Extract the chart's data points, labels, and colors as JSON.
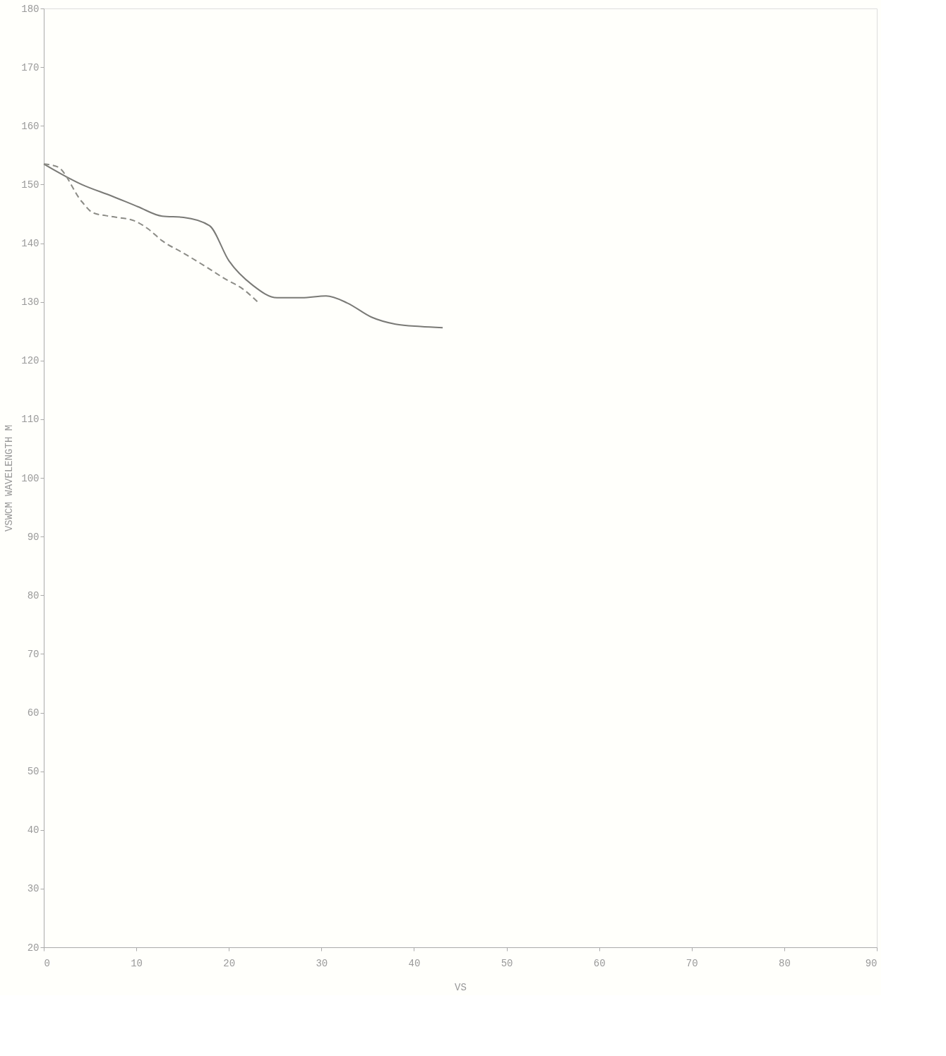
{
  "chart_data": {
    "type": "line",
    "xlabel": "VS",
    "ylabel": "VSWCM WAVELENGTH M",
    "xlim": [
      0,
      90
    ],
    "ylim": [
      20,
      180
    ],
    "xticks": [
      0,
      10,
      20,
      30,
      40,
      50,
      60,
      70,
      80,
      90
    ],
    "yticks": [
      20,
      30,
      40,
      50,
      60,
      70,
      80,
      90,
      100,
      110,
      120,
      130,
      140,
      150,
      160,
      170,
      180
    ],
    "grid": false,
    "marker": "none",
    "series": [
      {
        "color": "#7a7a76",
        "line_style": "solid",
        "x": [
          0,
          4.1,
          7.4,
          10.2,
          12.8,
          15.1,
          17.9,
          20,
          22.6,
          25.2,
          27.9,
          30.5,
          32.8,
          35.4,
          38,
          40.7,
          43.1
        ],
        "values": [
          153.5,
          150,
          148,
          146.2,
          144.6,
          144.4,
          143,
          137,
          132.8,
          130.7,
          130.7,
          131,
          129.8,
          127.4,
          126.2,
          125.8,
          125.6
        ]
      },
      {
        "color": "#8c8c86",
        "line_style": "dashed",
        "x": [
          0,
          1.5,
          4.1,
          5.3,
          7.5,
          9.8,
          11.3,
          12.8,
          15.1,
          17.3,
          19.6,
          21.5,
          23.3
        ],
        "values": [
          153.5,
          153,
          147.1,
          145.2,
          144.5,
          143.8,
          142.4,
          140.4,
          138.3,
          136.2,
          133.9,
          132.2,
          129.7
        ]
      }
    ]
  }
}
